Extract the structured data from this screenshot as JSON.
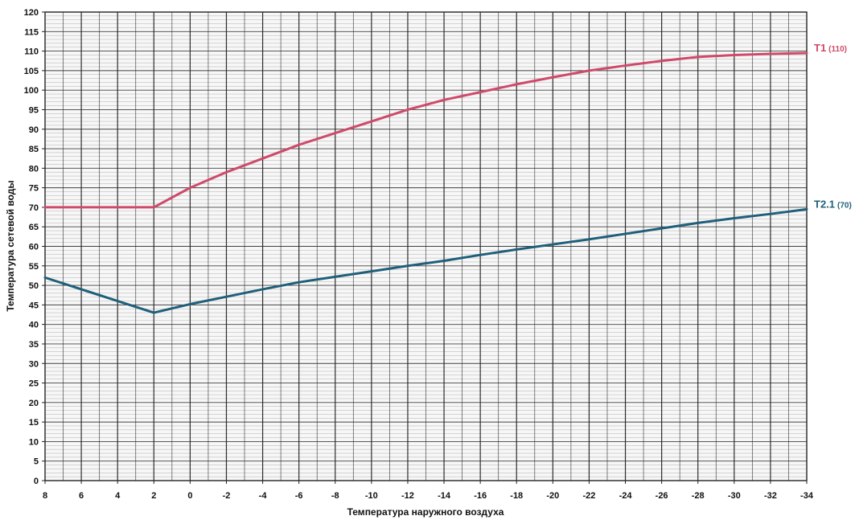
{
  "chart_data": {
    "type": "line",
    "title": "",
    "xlabel": "Температура наружного воздуха",
    "ylabel": "Температура сетевой воды",
    "x_ticks": [
      "8",
      "6",
      "4",
      "2",
      "0",
      "-2",
      "-4",
      "-6",
      "-8",
      "-10",
      "-12",
      "-14",
      "-16",
      "-18",
      "-20",
      "-22",
      "-24",
      "-26",
      "-28",
      "-30",
      "-32",
      "-34"
    ],
    "y_ticks": [
      "0",
      "5",
      "10",
      "15",
      "20",
      "25",
      "30",
      "35",
      "40",
      "45",
      "50",
      "55",
      "60",
      "65",
      "70",
      "75",
      "80",
      "85",
      "90",
      "95",
      "100",
      "105",
      "110",
      "115",
      "120"
    ],
    "xlim": [
      8,
      -34
    ],
    "ylim": [
      0,
      120
    ],
    "x_reversed": true,
    "grid": true,
    "grid_x_step": 1,
    "grid_y_step": 1,
    "legend": "none",
    "series": [
      {
        "label": "T1 (110)",
        "label_main": "T1",
        "label_suffix": "(110)",
        "color": "#cf4a6a",
        "x": [
          8,
          2,
          0,
          -2,
          -4,
          -6,
          -8,
          -10,
          -12,
          -14,
          -16,
          -18,
          -20,
          -22,
          -24,
          -26,
          -28,
          -30,
          -32,
          -34
        ],
        "y": [
          70,
          70,
          75,
          79,
          82.5,
          86,
          89,
          92,
          95,
          97.5,
          99.5,
          101.5,
          103.3,
          105,
          106.3,
          107.5,
          108.5,
          109,
          109.3,
          109.5
        ]
      },
      {
        "label": "T2.1 (70)",
        "label_main": "T2.1",
        "label_suffix": "(70)",
        "color": "#1f5f7a",
        "x": [
          8,
          2,
          0,
          -2,
          -4,
          -6,
          -8,
          -10,
          -12,
          -14,
          -16,
          -18,
          -20,
          -22,
          -24,
          -26,
          -28,
          -30,
          -32,
          -34
        ],
        "y": [
          52,
          43,
          45.2,
          47.1,
          49,
          50.8,
          52.2,
          53.6,
          55,
          56.3,
          57.8,
          59.2,
          60.5,
          61.8,
          63.2,
          64.6,
          66,
          67.2,
          68.3,
          69.5
        ]
      }
    ]
  }
}
